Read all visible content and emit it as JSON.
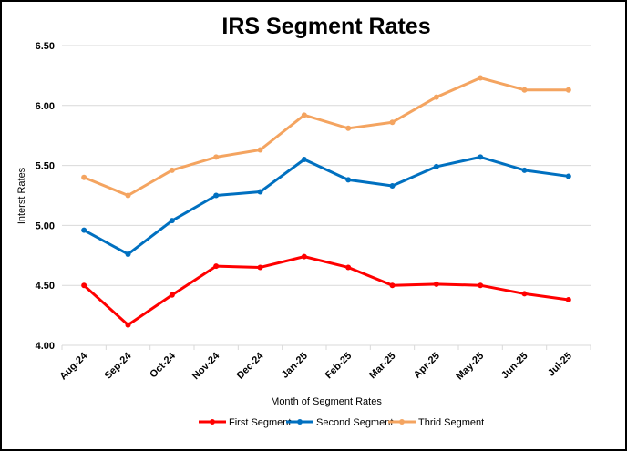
{
  "chart_data": {
    "type": "line",
    "title": "IRS Segment Rates",
    "xlabel": "Month of Segment Rates",
    "ylabel": "Interst Rates",
    "categories": [
      "Aug-24",
      "Sep-24",
      "Oct-24",
      "Nov-24",
      "Dec-24",
      "Jan-25",
      "Feb-25",
      "Mar-25",
      "Apr-25",
      "May-25",
      "Jun-25",
      "Jul-25"
    ],
    "ylim": [
      4.0,
      6.5
    ],
    "yticks": [
      "4.00",
      "4.50",
      "5.00",
      "5.50",
      "6.00",
      "6.50"
    ],
    "grid": true,
    "legend_position": "bottom",
    "series": [
      {
        "name": "First Segment",
        "color": "#ff0000",
        "values": [
          4.5,
          4.17,
          4.42,
          4.66,
          4.65,
          4.74,
          4.65,
          4.5,
          4.51,
          4.5,
          4.43,
          4.38
        ]
      },
      {
        "name": "Second Segment",
        "color": "#0070c0",
        "values": [
          4.96,
          4.76,
          5.04,
          5.25,
          5.28,
          5.55,
          5.38,
          5.33,
          5.49,
          5.57,
          5.46,
          5.41
        ]
      },
      {
        "name": "Thrid Segment",
        "color": "#f4a460",
        "values": [
          5.4,
          5.25,
          5.46,
          5.57,
          5.63,
          5.92,
          5.81,
          5.86,
          6.07,
          6.23,
          6.13,
          6.13
        ]
      }
    ]
  }
}
